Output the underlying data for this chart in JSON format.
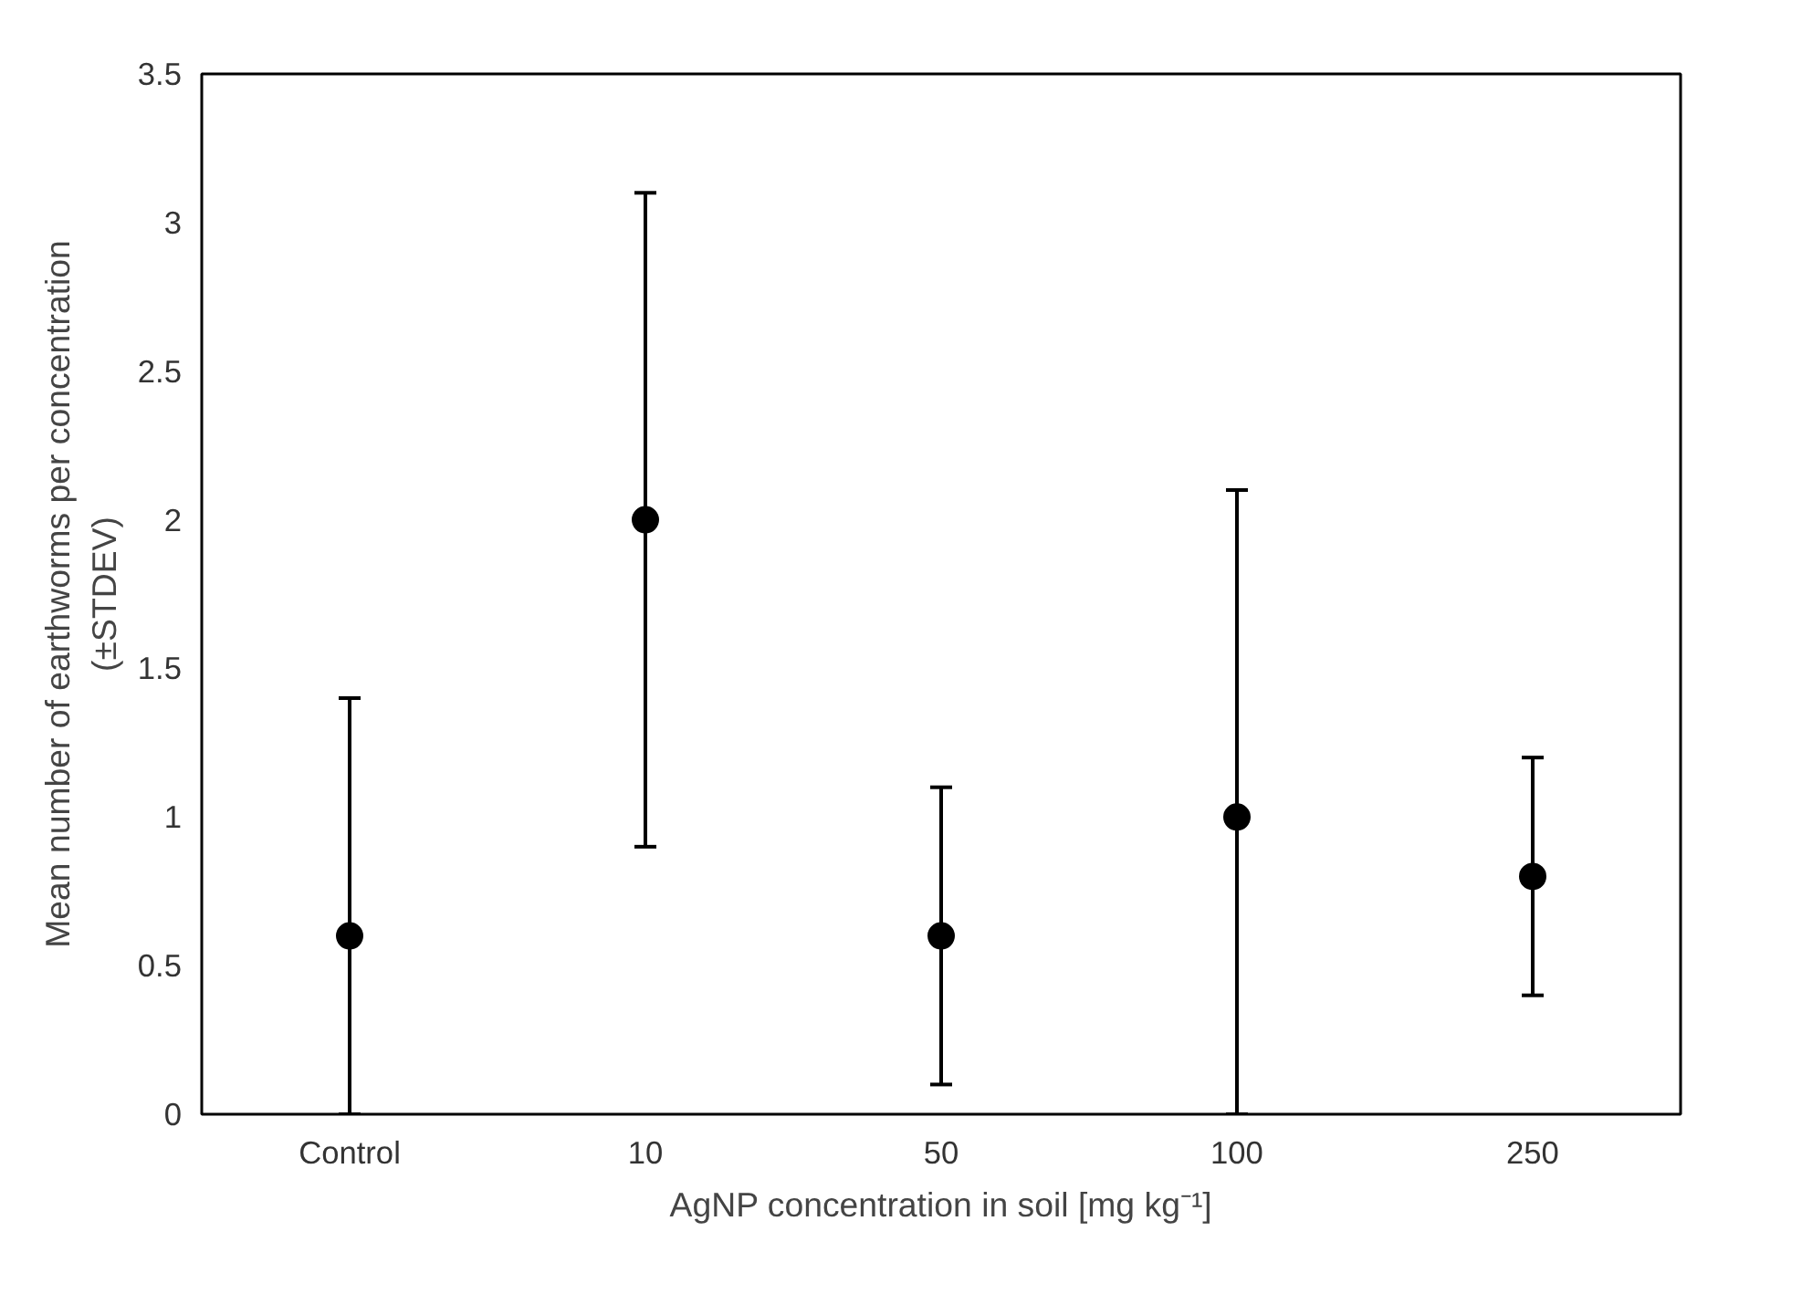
{
  "chart_data": {
    "type": "scatter",
    "xlabel": "AgNP concentration in soil [mg kg⁻¹]",
    "ylabel": "Mean number of earthworms per concentration\n(±STDEV)",
    "categories": [
      "Control",
      "10",
      "50",
      "100",
      "250"
    ],
    "values": [
      0.6,
      2.0,
      0.6,
      1.0,
      0.8
    ],
    "errors": [
      [
        0,
        1.4
      ],
      [
        0.9,
        3.1
      ],
      [
        0.1,
        1.1
      ],
      [
        0,
        2.1
      ],
      [
        0.4,
        1.2
      ]
    ],
    "color": "#000000",
    "marker": "circle",
    "ylim": [
      0,
      3.5
    ],
    "yticks": [
      0,
      0.5,
      1,
      1.5,
      2,
      2.5,
      3,
      3.5
    ],
    "grid": false
  }
}
